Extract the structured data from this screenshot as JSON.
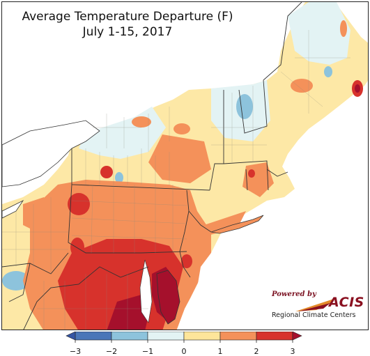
{
  "title": {
    "line1": "Average Temperature Departure (F)",
    "line2": "July 1-15, 2017"
  },
  "logo": {
    "powered_by": "Powered by",
    "name": "ACIS",
    "subtitle": "Regional Climate Centers"
  },
  "legend": {
    "ticks": [
      "−3",
      "−2",
      "−1",
      "0",
      "1",
      "2",
      "3"
    ],
    "bins": [
      {
        "from": -3,
        "to": -2,
        "color": "#4a76b8"
      },
      {
        "from": -2,
        "to": -1,
        "color": "#8dc3dc"
      },
      {
        "from": -1,
        "to": 0,
        "color": "#e3f3f4"
      },
      {
        "from": 0,
        "to": 1,
        "color": "#fee59a"
      },
      {
        "from": 1,
        "to": 2,
        "color": "#f4915a"
      },
      {
        "from": 2,
        "to": 3,
        "color": "#d7322c"
      }
    ],
    "under_color": "#3455a4",
    "over_color": "#a5102c"
  },
  "colors": {
    "background": "#ffffff",
    "lake": "#ffffff",
    "ocean": "#ffffff",
    "boundary": "#555555"
  }
}
